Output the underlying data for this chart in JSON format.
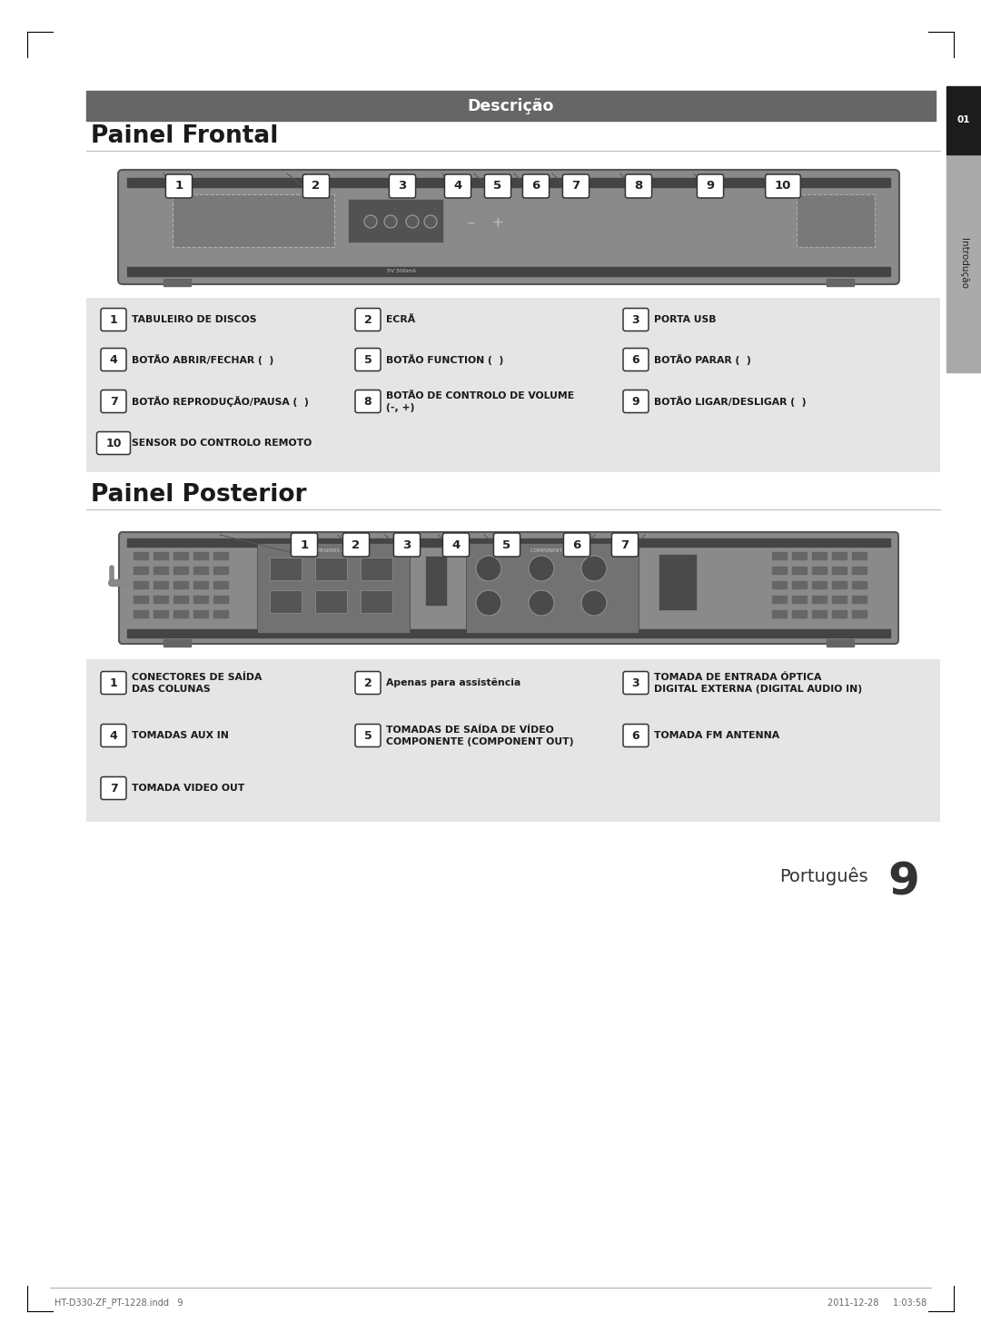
{
  "page_bg": "#ffffff",
  "header_bar_color": "#666666",
  "header_text": "Descrição",
  "header_text_color": "#ffffff",
  "section1_title": "Painel Frontal",
  "section2_title": "Painel Posterior",
  "legend_bg": "#e5e5e5",
  "footer_left": "HT-D330-ZF_PT-1228.indd   9",
  "footer_right": "2011-12-28     1:03:58",
  "page_num": "9",
  "page_num_label": "Português",
  "frontal_items": [
    [
      "1",
      "TABULEIRO DE DISCOS",
      0,
      0
    ],
    [
      "2",
      "ECRÃ",
      0,
      1
    ],
    [
      "3",
      "PORTA USB",
      0,
      2
    ],
    [
      "4",
      "BOTÃO ABRIR/FECHAR (  )",
      1,
      0
    ],
    [
      "5",
      "BOTÃO FUNCTION (  )",
      1,
      1
    ],
    [
      "6",
      "BOTÃO PARAR (  )",
      1,
      2
    ],
    [
      "7",
      "BOTÃO REPRODUÇÃO/PAUSA (  )",
      2,
      0
    ],
    [
      "8",
      "BOTÃO DE CONTROLO DE VOLUME\n(-, +)",
      2,
      1
    ],
    [
      "9",
      "BOTÃO LIGAR/DESLIGAR (  )",
      2,
      2
    ],
    [
      "10",
      "SENSOR DO CONTROLO REMOTO",
      3,
      0
    ]
  ],
  "posterior_items": [
    [
      "1",
      "CONECTORES DE SAÍDA\nDAS COLUNAS",
      0,
      0
    ],
    [
      "2",
      "Apenas para assistência",
      0,
      1
    ],
    [
      "3",
      "TOMADA DE ENTRADA ÓPTICA\nDIGITAL EXTERNA (DIGITAL AUDIO IN)",
      0,
      2
    ],
    [
      "4",
      "TOMADAS AUX IN",
      1,
      0
    ],
    [
      "5",
      "TOMADAS DE SAÍDA DE VÍDEO\nCOMPONENTE (COMPONENT OUT)",
      1,
      1
    ],
    [
      "6",
      "TOMADA FM ANTENNA",
      1,
      2
    ],
    [
      "7",
      "TOMADA VIDEO OUT",
      2,
      0
    ]
  ]
}
